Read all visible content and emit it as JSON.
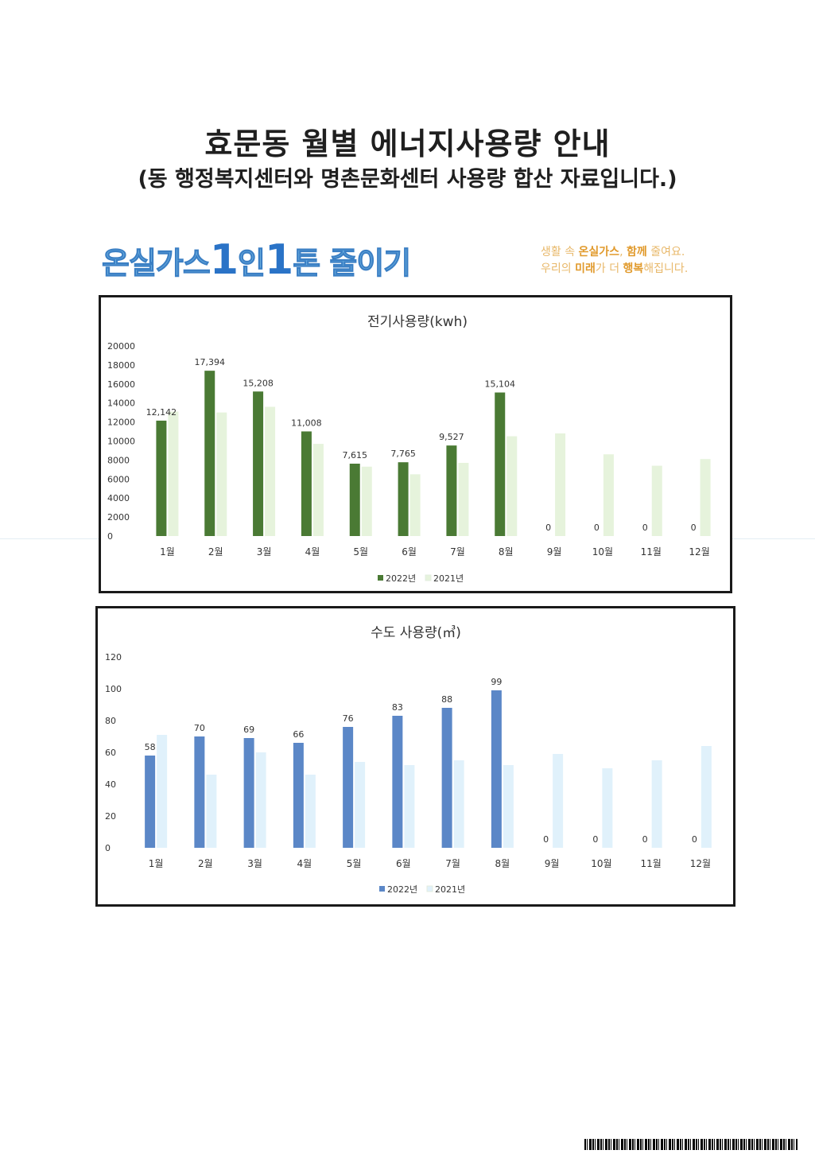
{
  "header": {
    "title": "효문동 월별 에너지사용량 안내",
    "subtitle": "(동 행정복지센터와 명촌문화센터 사용량 합산 자료입니다.)"
  },
  "logo": {
    "part1": "온실가스",
    "num1": "1",
    "part2": "인",
    "num2": "1",
    "part3": "톤 줄이기"
  },
  "slogan": {
    "line1_a": "생활 속 ",
    "line1_b": "온실가스",
    "line1_c": ", ",
    "line1_d": "함께",
    "line1_e": " 줄여요.",
    "line2_a": "우리의 ",
    "line2_b": "미래",
    "line2_c": "가 더 ",
    "line2_d": "행복",
    "line2_e": "해집니다."
  },
  "colors": {
    "elec2022": "#4a7a34",
    "elec2021": "#e6f3dc",
    "water2022": "#5b87c7",
    "water2021": "#e0f1fb"
  },
  "chart_data": [
    {
      "type": "bar",
      "title": "전기사용량(kwh)",
      "categories": [
        "1월",
        "2월",
        "3월",
        "4월",
        "5월",
        "6월",
        "7월",
        "8월",
        "9월",
        "10월",
        "11월",
        "12월"
      ],
      "series": [
        {
          "name": "2022년",
          "values": [
            12142,
            17394,
            15208,
            11008,
            7615,
            7765,
            9527,
            15104,
            0,
            0,
            0,
            0
          ],
          "labels": [
            "12,142",
            "17,394",
            "15,208",
            "11,008",
            "7,615",
            "7,765",
            "9,527",
            "15,104",
            "0",
            "0",
            "0",
            "0"
          ]
        },
        {
          "name": "2021년",
          "values": [
            13100,
            13000,
            13600,
            9700,
            7300,
            6500,
            7700,
            10500,
            10800,
            8600,
            7400,
            8100
          ]
        }
      ],
      "ylim": [
        0,
        20000
      ],
      "yticks": [
        "0",
        "2000",
        "4000",
        "6000",
        "8000",
        "10000",
        "12000",
        "14000",
        "16000",
        "18000",
        "20000"
      ],
      "legend": "bottom"
    },
    {
      "type": "bar",
      "title": "수도 사용량(㎥)",
      "categories": [
        "1월",
        "2월",
        "3월",
        "4월",
        "5월",
        "6월",
        "7월",
        "8월",
        "9월",
        "10월",
        "11월",
        "12월"
      ],
      "series": [
        {
          "name": "2022년",
          "values": [
            58,
            70,
            69,
            66,
            76,
            83,
            88,
            99,
            0,
            0,
            0,
            0
          ],
          "labels": [
            "58",
            "70",
            "69",
            "66",
            "76",
            "83",
            "88",
            "99",
            "0",
            "0",
            "0",
            "0"
          ]
        },
        {
          "name": "2021년",
          "values": [
            71,
            46,
            60,
            46,
            54,
            52,
            55,
            52,
            59,
            50,
            55,
            64
          ]
        }
      ],
      "ylim": [
        0,
        120
      ],
      "yticks": [
        "0",
        "20",
        "40",
        "60",
        "80",
        "100",
        "120"
      ],
      "legend": "bottom"
    }
  ]
}
